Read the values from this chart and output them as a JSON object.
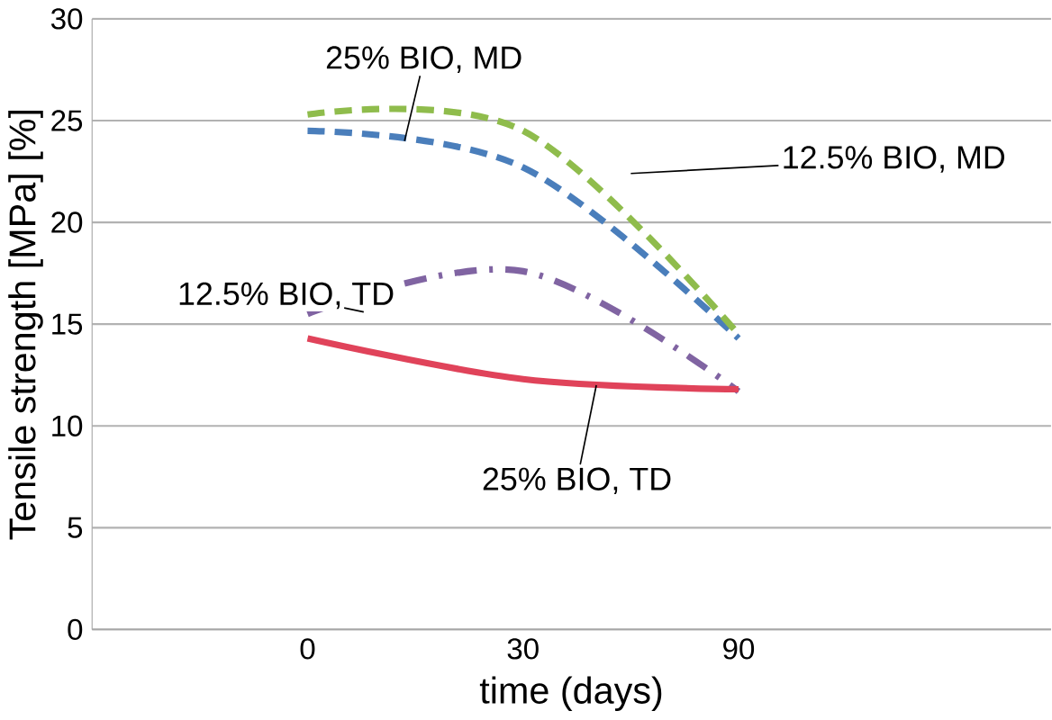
{
  "chart_data": {
    "type": "line",
    "xlabel": "time (days)",
    "ylabel": "Tensile strength [MPa] [%]",
    "categories": [
      "0",
      "30",
      "90"
    ],
    "ylim": [
      0,
      30
    ],
    "yticks": [
      0,
      5,
      10,
      15,
      20,
      25,
      30
    ],
    "grid": "y",
    "legend": false,
    "marker": "none",
    "series": [
      {
        "name": "25% BIO, MD",
        "color": "#4a7ebb",
        "line_style": "dashed",
        "values": [
          24.5,
          22.7,
          14.3
        ]
      },
      {
        "name": "12.5% BIO, MD",
        "color": "#8fbc4c",
        "line_style": "dashed",
        "values": [
          25.3,
          24.5,
          14.5
        ]
      },
      {
        "name": "12.5% BIO, TD",
        "color": "#8064a2",
        "line_style": "dashdot",
        "values": [
          15.5,
          17.6,
          11.7
        ]
      },
      {
        "name": "25% BIO, TD",
        "color": "#e0435a",
        "line_style": "solid",
        "values": [
          14.3,
          12.3,
          11.8
        ]
      }
    ]
  }
}
